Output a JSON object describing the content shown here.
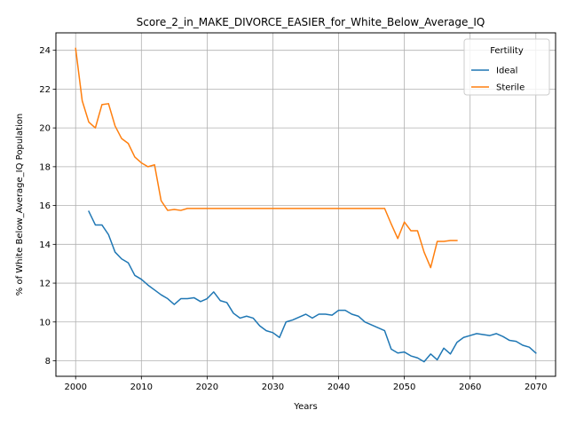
{
  "chart_data": {
    "type": "line",
    "title": "Score_2_in_MAKE_DIVORCE_EASIER_for_White_Below_Average_IQ",
    "xlabel": "Years",
    "ylabel": "% of White Below_Average_IQ Population",
    "xlim": [
      1997,
      2073
    ],
    "ylim": [
      7.2,
      24.9
    ],
    "xticks": [
      2000,
      2010,
      2020,
      2030,
      2040,
      2050,
      2060,
      2070
    ],
    "yticks": [
      8,
      10,
      12,
      14,
      16,
      18,
      20,
      22,
      24
    ],
    "grid": true,
    "legend": {
      "title": "Fertility",
      "placement": "top-right"
    },
    "series": [
      {
        "name": "Ideal",
        "color": "#1f77b4",
        "x": [
          2002,
          2003,
          2004,
          2005,
          2006,
          2007,
          2008,
          2009,
          2010,
          2011,
          2012,
          2013,
          2014,
          2015,
          2016,
          2017,
          2018,
          2019,
          2020,
          2021,
          2022,
          2023,
          2024,
          2025,
          2026,
          2027,
          2028,
          2029,
          2030,
          2031,
          2032,
          2033,
          2034,
          2035,
          2036,
          2037,
          2038,
          2039,
          2040,
          2041,
          2042,
          2043,
          2044,
          2045,
          2046,
          2047,
          2048,
          2049,
          2050,
          2051,
          2052,
          2053,
          2054,
          2055,
          2056,
          2057,
          2058,
          2059,
          2060,
          2061,
          2062,
          2063,
          2064,
          2065,
          2066,
          2067,
          2068,
          2069,
          2070
        ],
        "y": [
          15.7,
          15.0,
          15.0,
          14.5,
          13.6,
          13.25,
          13.05,
          12.4,
          12.2,
          11.9,
          11.65,
          11.4,
          11.2,
          10.9,
          11.2,
          11.2,
          11.25,
          11.05,
          11.2,
          11.55,
          11.1,
          11.0,
          10.45,
          10.2,
          10.3,
          10.2,
          9.8,
          9.55,
          9.45,
          9.2,
          10.0,
          10.1,
          10.25,
          10.4,
          10.2,
          10.4,
          10.4,
          10.35,
          10.6,
          10.6,
          10.4,
          10.3,
          10.0,
          9.85,
          9.7,
          9.55,
          8.6,
          8.4,
          8.45,
          8.25,
          8.15,
          7.95,
          8.35,
          8.05,
          8.65,
          8.35,
          8.95,
          9.2,
          9.3,
          9.4,
          9.35,
          9.3,
          9.4,
          9.25,
          9.05,
          9.0,
          8.8,
          8.7,
          8.4
        ]
      },
      {
        "name": "Sterile",
        "color": "#ff7f0e",
        "x": [
          2000,
          2001,
          2002,
          2003,
          2004,
          2005,
          2006,
          2007,
          2008,
          2009,
          2010,
          2011,
          2012,
          2013,
          2014,
          2015,
          2016,
          2017,
          2018,
          2019,
          2020,
          2030,
          2040,
          2047,
          2048,
          2049,
          2050,
          2051,
          2052,
          2053,
          2054,
          2055,
          2056,
          2057,
          2058
        ],
        "y": [
          24.1,
          21.4,
          20.3,
          20.0,
          21.2,
          21.25,
          20.1,
          19.45,
          19.2,
          18.5,
          18.2,
          18.0,
          18.1,
          16.25,
          15.75,
          15.8,
          15.75,
          15.85,
          15.85,
          15.85,
          15.85,
          15.85,
          15.85,
          15.85,
          15.05,
          14.3,
          15.15,
          14.7,
          14.7,
          13.6,
          12.8,
          14.15,
          14.15,
          14.2,
          14.2
        ]
      }
    ]
  }
}
